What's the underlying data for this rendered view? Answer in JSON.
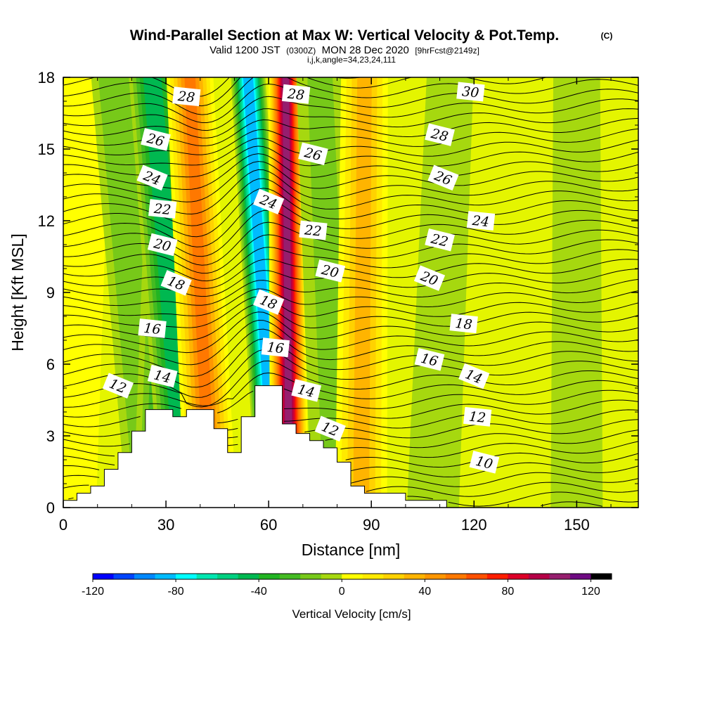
{
  "title": {
    "main": "Wind-Parallel Section at Max W: Vertical Velocity & Pot.Temp.",
    "copyright": "(C)",
    "valid_prefix": "Valid 1200 JST",
    "valid_zulu": "(0300Z)",
    "valid_date": "MON 28 Dec 2020",
    "forecast": "[9hrFcst@2149z]",
    "indices": "i,j,k,angle=34,23,24,111"
  },
  "colors": {
    "negative": [
      "#0000ff",
      "#0044ff",
      "#0088ff",
      "#00bbff",
      "#00ffff",
      "#00e6b0",
      "#00d080",
      "#00b850",
      "#22b422",
      "#44bb22",
      "#77c919",
      "#a6d80f"
    ],
    "positive": [
      "#ffff00",
      "#ffea00",
      "#ffd200",
      "#ffb400",
      "#ff9600",
      "#ff7800",
      "#ff5000",
      "#ff1e00",
      "#dc0028",
      "#b40046",
      "#961e6e",
      "#6e0a82"
    ],
    "terrain": "#ffffff",
    "contour": "#000000"
  },
  "chart_data": {
    "type": "heatmap",
    "xlabel": "Distance [nm]",
    "ylabel": "Height [Kft MSL]",
    "xlim": [
      0,
      168
    ],
    "ylim": [
      0,
      18
    ],
    "x_ticks": [
      0,
      30,
      60,
      90,
      120,
      150
    ],
    "y_ticks": [
      0,
      3,
      6,
      9,
      12,
      15,
      18
    ],
    "colorbar": {
      "title": "Vertical Velocity [cm/s]",
      "min": -120,
      "max": 130,
      "step": 10,
      "tick_values": [
        -120,
        -80,
        -40,
        0,
        40,
        80,
        120
      ],
      "tick_labels": [
        "-120",
        "-80",
        "-40",
        "0",
        "40",
        "80",
        "120"
      ]
    },
    "vertical_velocity_bands": [
      {
        "x_bottom": 2,
        "x_top": 7,
        "w_cm_s": -5
      },
      {
        "x_bottom": 26,
        "x_top": 15,
        "w_cm_s": -25
      },
      {
        "x_bottom": 28,
        "x_top": 32,
        "w_cm_s": -35
      },
      {
        "x_bottom": 36,
        "x_top": 26,
        "w_cm_s": -55
      },
      {
        "x_bottom": 43,
        "x_top": 37,
        "w_cm_s": 55
      },
      {
        "x_bottom": 62,
        "x_top": 54,
        "w_cm_s": -95
      },
      {
        "x_bottom": 66,
        "x_top": 65,
        "w_cm_s": 110
      },
      {
        "x_bottom": 80,
        "x_top": 75,
        "w_cm_s": -20
      },
      {
        "x_bottom": 87,
        "x_top": 88,
        "w_cm_s": 35
      },
      {
        "x_bottom": 108,
        "x_top": 113,
        "w_cm_s": -12
      },
      {
        "x_bottom": 150,
        "x_top": 150,
        "w_cm_s": -8
      }
    ],
    "terrain_profile": {
      "x": [
        0,
        4,
        8,
        12,
        16,
        20,
        24,
        28,
        32,
        36,
        40,
        44,
        48,
        52,
        56,
        60,
        64,
        68,
        72,
        76,
        80,
        84,
        88,
        92,
        96,
        100,
        104,
        108
      ],
      "height_kft": [
        0.3,
        0.6,
        0.9,
        1.6,
        2.3,
        3.2,
        4.1,
        4.1,
        3.8,
        4.1,
        4.1,
        3.3,
        2.3,
        3.8,
        5.1,
        5.1,
        3.5,
        3.1,
        2.8,
        2.5,
        1.9,
        0.9,
        0.6,
        0.6,
        0.6,
        0.3,
        0.3,
        0.3
      ]
    },
    "potential_temperature": {
      "unit": "C",
      "contour_levels": [
        10,
        12,
        14,
        16,
        18,
        20,
        22,
        24,
        26,
        28,
        30
      ],
      "labels": [
        {
          "text": "28",
          "x": 36,
          "y": 17.2
        },
        {
          "text": "26",
          "x": 27,
          "y": 15.4
        },
        {
          "text": "24",
          "x": 26,
          "y": 13.8
        },
        {
          "text": "22",
          "x": 29,
          "y": 12.5
        },
        {
          "text": "20",
          "x": 29,
          "y": 11.0
        },
        {
          "text": "18",
          "x": 33,
          "y": 9.4
        },
        {
          "text": "16",
          "x": 26,
          "y": 7.5
        },
        {
          "text": "14",
          "x": 29,
          "y": 5.5
        },
        {
          "text": "12",
          "x": 16,
          "y": 5.1
        },
        {
          "text": "28",
          "x": 68,
          "y": 17.3
        },
        {
          "text": "26",
          "x": 73,
          "y": 14.8
        },
        {
          "text": "24",
          "x": 60,
          "y": 12.8
        },
        {
          "text": "22",
          "x": 73,
          "y": 11.6
        },
        {
          "text": "20",
          "x": 78,
          "y": 9.9
        },
        {
          "text": "18",
          "x": 60,
          "y": 8.6
        },
        {
          "text": "16",
          "x": 62,
          "y": 6.7
        },
        {
          "text": "14",
          "x": 71,
          "y": 4.9
        },
        {
          "text": "12",
          "x": 78,
          "y": 3.3
        },
        {
          "text": "30",
          "x": 119,
          "y": 17.4
        },
        {
          "text": "28",
          "x": 110,
          "y": 15.6
        },
        {
          "text": "26",
          "x": 111,
          "y": 13.8
        },
        {
          "text": "24",
          "x": 122,
          "y": 12.0
        },
        {
          "text": "22",
          "x": 110,
          "y": 11.2
        },
        {
          "text": "20",
          "x": 107,
          "y": 9.6
        },
        {
          "text": "18",
          "x": 117,
          "y": 7.7
        },
        {
          "text": "16",
          "x": 107,
          "y": 6.2
        },
        {
          "text": "14",
          "x": 120,
          "y": 5.5
        },
        {
          "text": "12",
          "x": 121,
          "y": 3.8
        },
        {
          "text": "10",
          "x": 123,
          "y": 1.9
        }
      ]
    }
  }
}
